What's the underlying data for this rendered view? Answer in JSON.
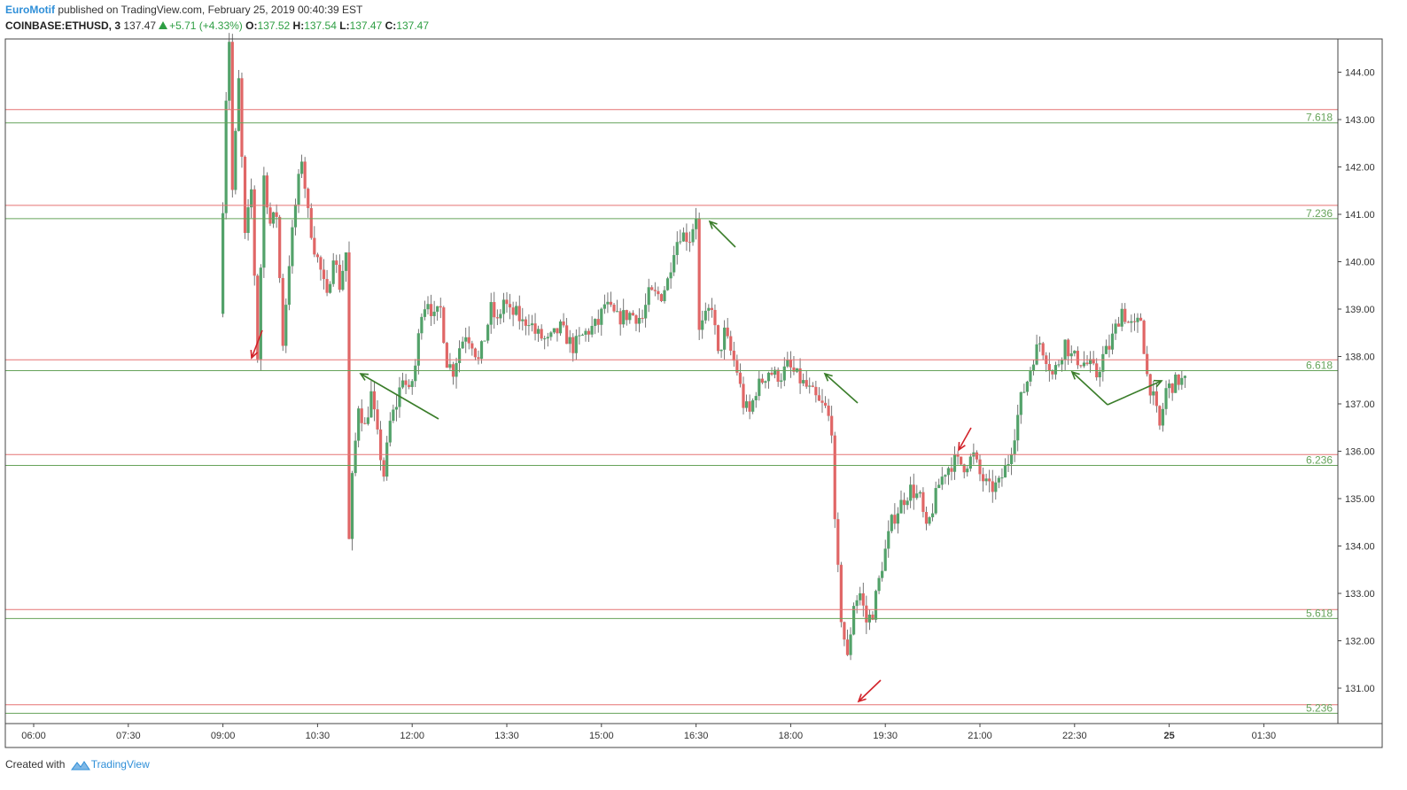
{
  "header": {
    "username": "EuroMotif",
    "published_text": "published on TradingView.com, February 25, 2019 00:40:39 EST",
    "symbol": "COINBASE:ETHUSD, 3",
    "last": "137.47",
    "change": "+5.71 (+4.33%)",
    "open_label": "O:",
    "open": "137.52",
    "high_label": "H:",
    "high": "137.54",
    "low_label": "L:",
    "low": "137.47",
    "close_label": "C:",
    "close": "137.47"
  },
  "footer": {
    "created_with": "Created with",
    "brand": "TradingView"
  },
  "colors": {
    "up": "#53a26a",
    "down": "#e06666",
    "fib_red": "#e57373",
    "fib_green": "#66a35a",
    "arrow_green": "#3a7d2a",
    "arrow_red": "#d2232a"
  },
  "chart_data": {
    "type": "candlestick",
    "ylim": [
      130.3,
      144.8
    ],
    "y_ticks": [
      "131.00",
      "132.00",
      "133.00",
      "134.00",
      "135.00",
      "136.00",
      "137.00",
      "138.00",
      "139.00",
      "140.00",
      "141.00",
      "142.00",
      "143.00",
      "144.00"
    ],
    "x_ticks": [
      "06:00",
      "07:30",
      "09:00",
      "10:30",
      "12:00",
      "13:30",
      "15:00",
      "16:30",
      "18:00",
      "19:30",
      "21:00",
      "22:30",
      "25",
      "01:30"
    ],
    "x_range_hours": [
      6.0,
      25.75
    ],
    "grid": false,
    "fib_levels": [
      {
        "label": "7.618",
        "red": 143.21,
        "green": 142.93
      },
      {
        "label": "7.236",
        "red": 141.19,
        "green": 140.91
      },
      {
        "label": "6.618",
        "red": 137.93,
        "green": 137.7
      },
      {
        "label": "6.236",
        "red": 135.93,
        "green": 135.7
      },
      {
        "label": "5.618",
        "red": 132.66,
        "green": 132.47
      },
      {
        "label": "5.236",
        "red": 130.65,
        "green": 130.47
      }
    ],
    "price_path": [
      [
        9.0,
        138.9
      ],
      [
        9.1,
        143.5
      ],
      [
        9.15,
        144.7
      ],
      [
        9.2,
        141.5
      ],
      [
        9.3,
        143.8
      ],
      [
        9.4,
        140.5
      ],
      [
        9.5,
        141.5
      ],
      [
        9.6,
        138.0
      ],
      [
        9.7,
        141.8
      ],
      [
        9.8,
        140.8
      ],
      [
        9.9,
        141.0
      ],
      [
        10.0,
        138.3
      ],
      [
        10.1,
        140.0
      ],
      [
        10.2,
        141.2
      ],
      [
        10.3,
        142.2
      ],
      [
        10.4,
        141.0
      ],
      [
        10.5,
        140.3
      ],
      [
        10.6,
        139.8
      ],
      [
        10.7,
        139.2
      ],
      [
        10.8,
        140.2
      ],
      [
        10.9,
        139.5
      ],
      [
        11.0,
        140.2
      ],
      [
        11.05,
        134.1
      ],
      [
        11.1,
        135.4
      ],
      [
        11.2,
        137.0
      ],
      [
        11.3,
        136.5
      ],
      [
        11.4,
        137.2
      ],
      [
        11.5,
        136.3
      ],
      [
        11.6,
        135.5
      ],
      [
        11.7,
        136.6
      ],
      [
        11.8,
        137.0
      ],
      [
        11.9,
        137.6
      ],
      [
        12.0,
        137.2
      ],
      [
        12.1,
        137.8
      ],
      [
        12.2,
        139.0
      ],
      [
        12.3,
        139.2
      ],
      [
        12.4,
        138.8
      ],
      [
        12.5,
        139.0
      ],
      [
        12.6,
        137.9
      ],
      [
        12.7,
        137.7
      ],
      [
        12.8,
        138.2
      ],
      [
        12.9,
        138.5
      ],
      [
        13.0,
        138.3
      ],
      [
        13.1,
        137.9
      ],
      [
        13.2,
        138.4
      ],
      [
        13.3,
        139.0
      ],
      [
        13.4,
        138.7
      ],
      [
        13.5,
        139.2
      ],
      [
        13.6,
        138.9
      ],
      [
        13.7,
        138.9
      ],
      [
        13.8,
        138.7
      ],
      [
        13.9,
        138.8
      ],
      [
        14.0,
        138.5
      ],
      [
        14.2,
        138.3
      ],
      [
        14.4,
        138.6
      ],
      [
        14.6,
        138.2
      ],
      [
        14.8,
        138.5
      ],
      [
        15.0,
        138.7
      ],
      [
        15.1,
        139.1
      ],
      [
        15.3,
        138.8
      ],
      [
        15.5,
        138.9
      ],
      [
        15.7,
        138.8
      ],
      [
        15.8,
        139.3
      ],
      [
        16.0,
        139.3
      ],
      [
        16.1,
        139.6
      ],
      [
        16.2,
        140.3
      ],
      [
        16.3,
        140.6
      ],
      [
        16.45,
        140.5
      ],
      [
        16.55,
        141.0
      ],
      [
        16.6,
        138.5
      ],
      [
        16.7,
        138.8
      ],
      [
        16.8,
        139.1
      ],
      [
        16.9,
        138.0
      ],
      [
        17.0,
        138.5
      ],
      [
        17.1,
        138.1
      ],
      [
        17.2,
        137.7
      ],
      [
        17.3,
        137.0
      ],
      [
        17.4,
        136.8
      ],
      [
        17.5,
        137.3
      ],
      [
        17.6,
        137.5
      ],
      [
        17.7,
        137.7
      ],
      [
        17.8,
        137.6
      ],
      [
        17.9,
        137.6
      ],
      [
        18.0,
        137.8
      ],
      [
        18.2,
        137.5
      ],
      [
        18.4,
        137.2
      ],
      [
        18.5,
        137.0
      ],
      [
        18.6,
        136.9
      ],
      [
        18.7,
        136.5
      ],
      [
        18.75,
        134.4
      ],
      [
        18.85,
        132.5
      ],
      [
        18.95,
        131.6
      ],
      [
        19.05,
        132.8
      ],
      [
        19.15,
        133.0
      ],
      [
        19.25,
        132.4
      ],
      [
        19.35,
        132.6
      ],
      [
        19.5,
        133.6
      ],
      [
        19.65,
        134.5
      ],
      [
        19.8,
        134.9
      ],
      [
        19.95,
        135.2
      ],
      [
        20.1,
        135.0
      ],
      [
        20.2,
        134.3
      ],
      [
        20.3,
        134.8
      ],
      [
        20.4,
        135.3
      ],
      [
        20.5,
        135.6
      ],
      [
        20.65,
        135.8
      ],
      [
        20.8,
        135.7
      ],
      [
        20.95,
        135.9
      ],
      [
        21.05,
        135.5
      ],
      [
        21.2,
        135.2
      ],
      [
        21.35,
        135.3
      ],
      [
        21.5,
        135.8
      ],
      [
        21.6,
        136.4
      ],
      [
        21.7,
        137.1
      ],
      [
        21.8,
        137.5
      ],
      [
        21.9,
        138.0
      ],
      [
        22.0,
        138.3
      ],
      [
        22.1,
        138.0
      ],
      [
        22.2,
        137.6
      ],
      [
        22.3,
        137.9
      ],
      [
        22.4,
        138.3
      ],
      [
        22.5,
        138.0
      ],
      [
        22.65,
        137.9
      ],
      [
        22.8,
        137.8
      ],
      [
        22.9,
        137.6
      ],
      [
        23.0,
        138.0
      ],
      [
        23.1,
        138.2
      ],
      [
        23.2,
        138.6
      ],
      [
        23.3,
        139.0
      ],
      [
        23.4,
        138.7
      ],
      [
        23.5,
        138.6
      ],
      [
        23.6,
        138.8
      ],
      [
        23.7,
        137.6
      ],
      [
        23.8,
        137.1
      ],
      [
        23.9,
        136.5
      ],
      [
        24.0,
        137.3
      ],
      [
        24.1,
        137.4
      ],
      [
        24.2,
        137.5
      ],
      [
        24.3,
        137.47
      ]
    ]
  }
}
